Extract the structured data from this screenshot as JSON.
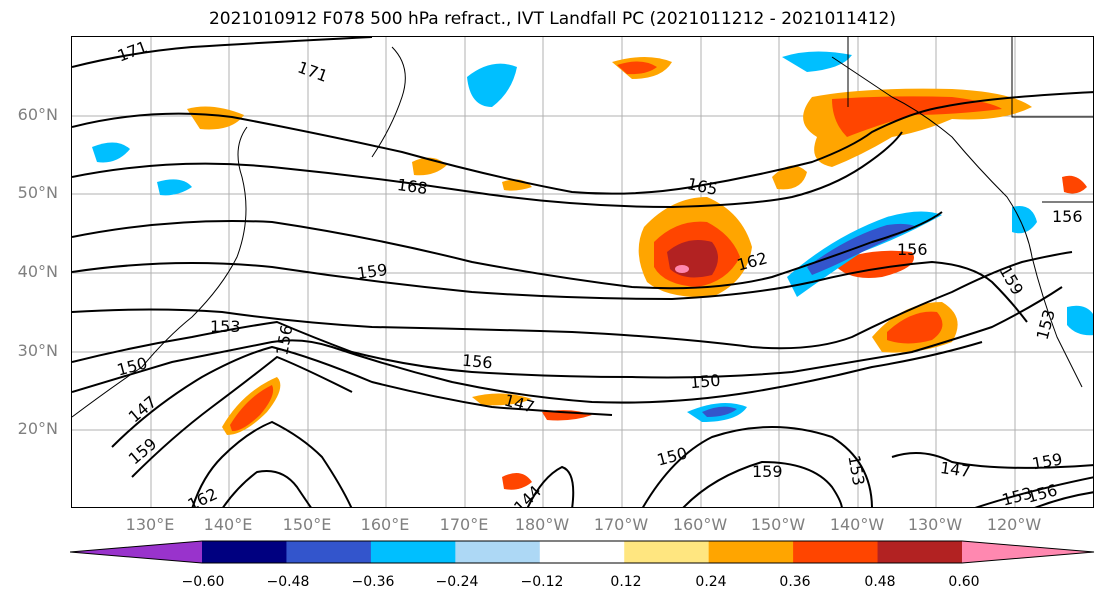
{
  "title": "2021010912 F078 500 hPa refract., IVT Landfall PC (2021011212 - 2021011412)",
  "lat_labels": [
    "60°N",
    "50°N",
    "40°N",
    "30°N",
    "20°N"
  ],
  "lon_labels": [
    "130°E",
    "140°E",
    "150°E",
    "160°E",
    "170°E",
    "180°W",
    "170°W",
    "160°W",
    "150°W",
    "140°W",
    "130°W",
    "120°W"
  ],
  "contour_labels": [
    "171",
    "171",
    "168",
    "165",
    "162",
    "159",
    "156",
    "156",
    "156",
    "153",
    "153",
    "153",
    "150",
    "150",
    "150",
    "147",
    "147",
    "147",
    "159",
    "159",
    "159",
    "162",
    "144",
    "156",
    "159",
    "153",
    "156"
  ],
  "colorbar": {
    "ticks": [
      "−0.60",
      "−0.48",
      "−0.36",
      "−0.24",
      "−0.12",
      "0.12",
      "0.24",
      "0.36",
      "0.48",
      "0.60"
    ],
    "colors": [
      "#9933cc",
      "#000080",
      "#3355cc",
      "#00bfff",
      "#add8f5",
      "#ffffff",
      "#ffe680",
      "#ffa500",
      "#ff4500",
      "#b22222",
      "#ff88b0"
    ]
  }
}
